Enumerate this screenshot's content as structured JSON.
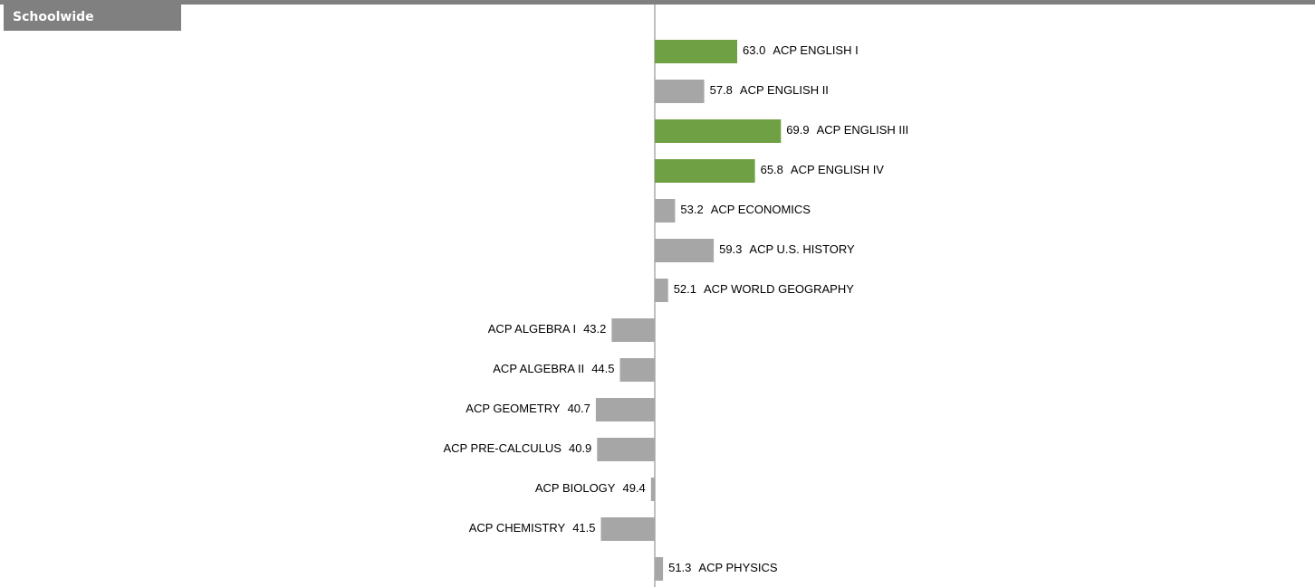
{
  "header": {
    "title": "Schoolwide"
  },
  "chart_data": {
    "type": "diverging-bar",
    "categories": [
      "ACP ENGLISH I",
      "ACP ENGLISH II",
      "ACP ENGLISH III",
      "ACP ENGLISH IV",
      "ACP ECONOMICS",
      "ACP U.S. HISTORY",
      "ACP WORLD GEOGRAPHY",
      "ACP ALGEBRA I",
      "ACP ALGEBRA II",
      "ACP GEOMETRY",
      "ACP PRE-CALCULUS",
      "ACP BIOLOGY",
      "ACP CHEMISTRY",
      "ACP PHYSICS"
    ],
    "values": [
      63.0,
      57.8,
      69.9,
      65.8,
      53.2,
      59.3,
      52.1,
      43.2,
      44.5,
      40.7,
      40.9,
      49.4,
      41.5,
      51.3
    ],
    "value_labels": [
      "63.0",
      "57.8",
      "69.9",
      "65.8",
      "53.2",
      "59.3",
      "52.1",
      "43.2",
      "44.5",
      "40.7",
      "40.9",
      "49.4",
      "41.5",
      "51.3"
    ],
    "colors": [
      "#70a044",
      "#a6a6a6",
      "#70a044",
      "#70a044",
      "#a6a6a6",
      "#a6a6a6",
      "#a6a6a6",
      "#a6a6a6",
      "#a6a6a6",
      "#a6a6a6",
      "#a6a6a6",
      "#a6a6a6",
      "#a6a6a6",
      "#a6a6a6"
    ],
    "baseline": 50,
    "xlim": [
      40,
      70
    ]
  }
}
